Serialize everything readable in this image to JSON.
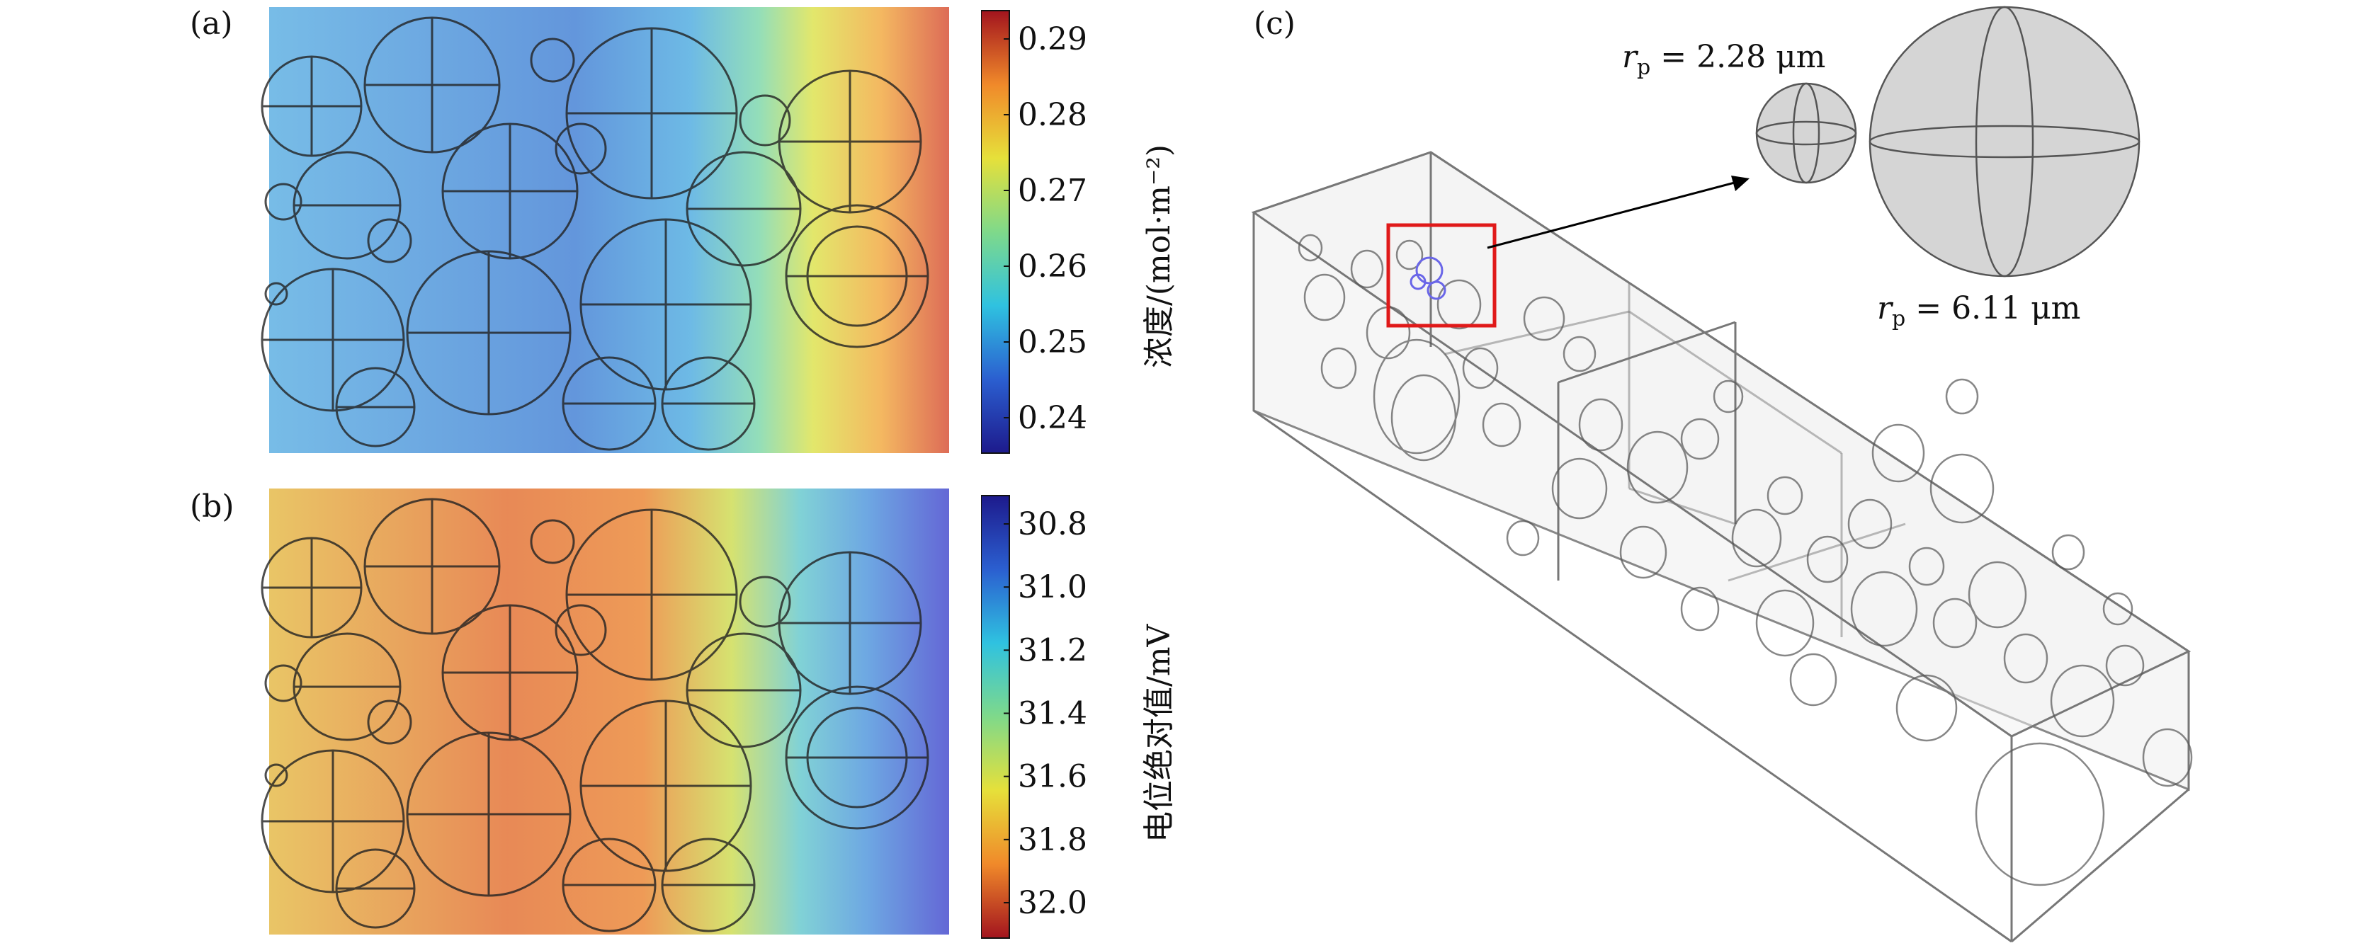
{
  "panels": {
    "a": {
      "label": "(a)",
      "colorbar": {
        "title": "浓度/(mol·m⁻²)",
        "ticks": [
          "0.29",
          "0.28",
          "0.27",
          "0.26",
          "0.25",
          "0.24"
        ],
        "colormap": [
          "#1d1a8c",
          "#2b5fd0",
          "#2fc2e0",
          "#7fd98a",
          "#e6e03a",
          "#f0892a",
          "#a2141e"
        ]
      }
    },
    "b": {
      "label": "(b)",
      "colorbar": {
        "title": "电位绝对值/mV",
        "ticks": [
          "30.8",
          "31.0",
          "31.2",
          "31.4",
          "31.6",
          "31.8",
          "32.0"
        ],
        "colormap": [
          "#a2141e",
          "#f0892a",
          "#e6e03a",
          "#7fd98a",
          "#2fc2e0",
          "#2b5fd0",
          "#1d1a8c"
        ]
      }
    },
    "c": {
      "label": "(c)",
      "small_particle": {
        "symbol": "r",
        "subscript": "p",
        "value": "= 2.28 μm"
      },
      "large_particle": {
        "symbol": "r",
        "subscript": "p",
        "value": "= 6.11 μm"
      },
      "highlight_color": "#e01919"
    }
  }
}
